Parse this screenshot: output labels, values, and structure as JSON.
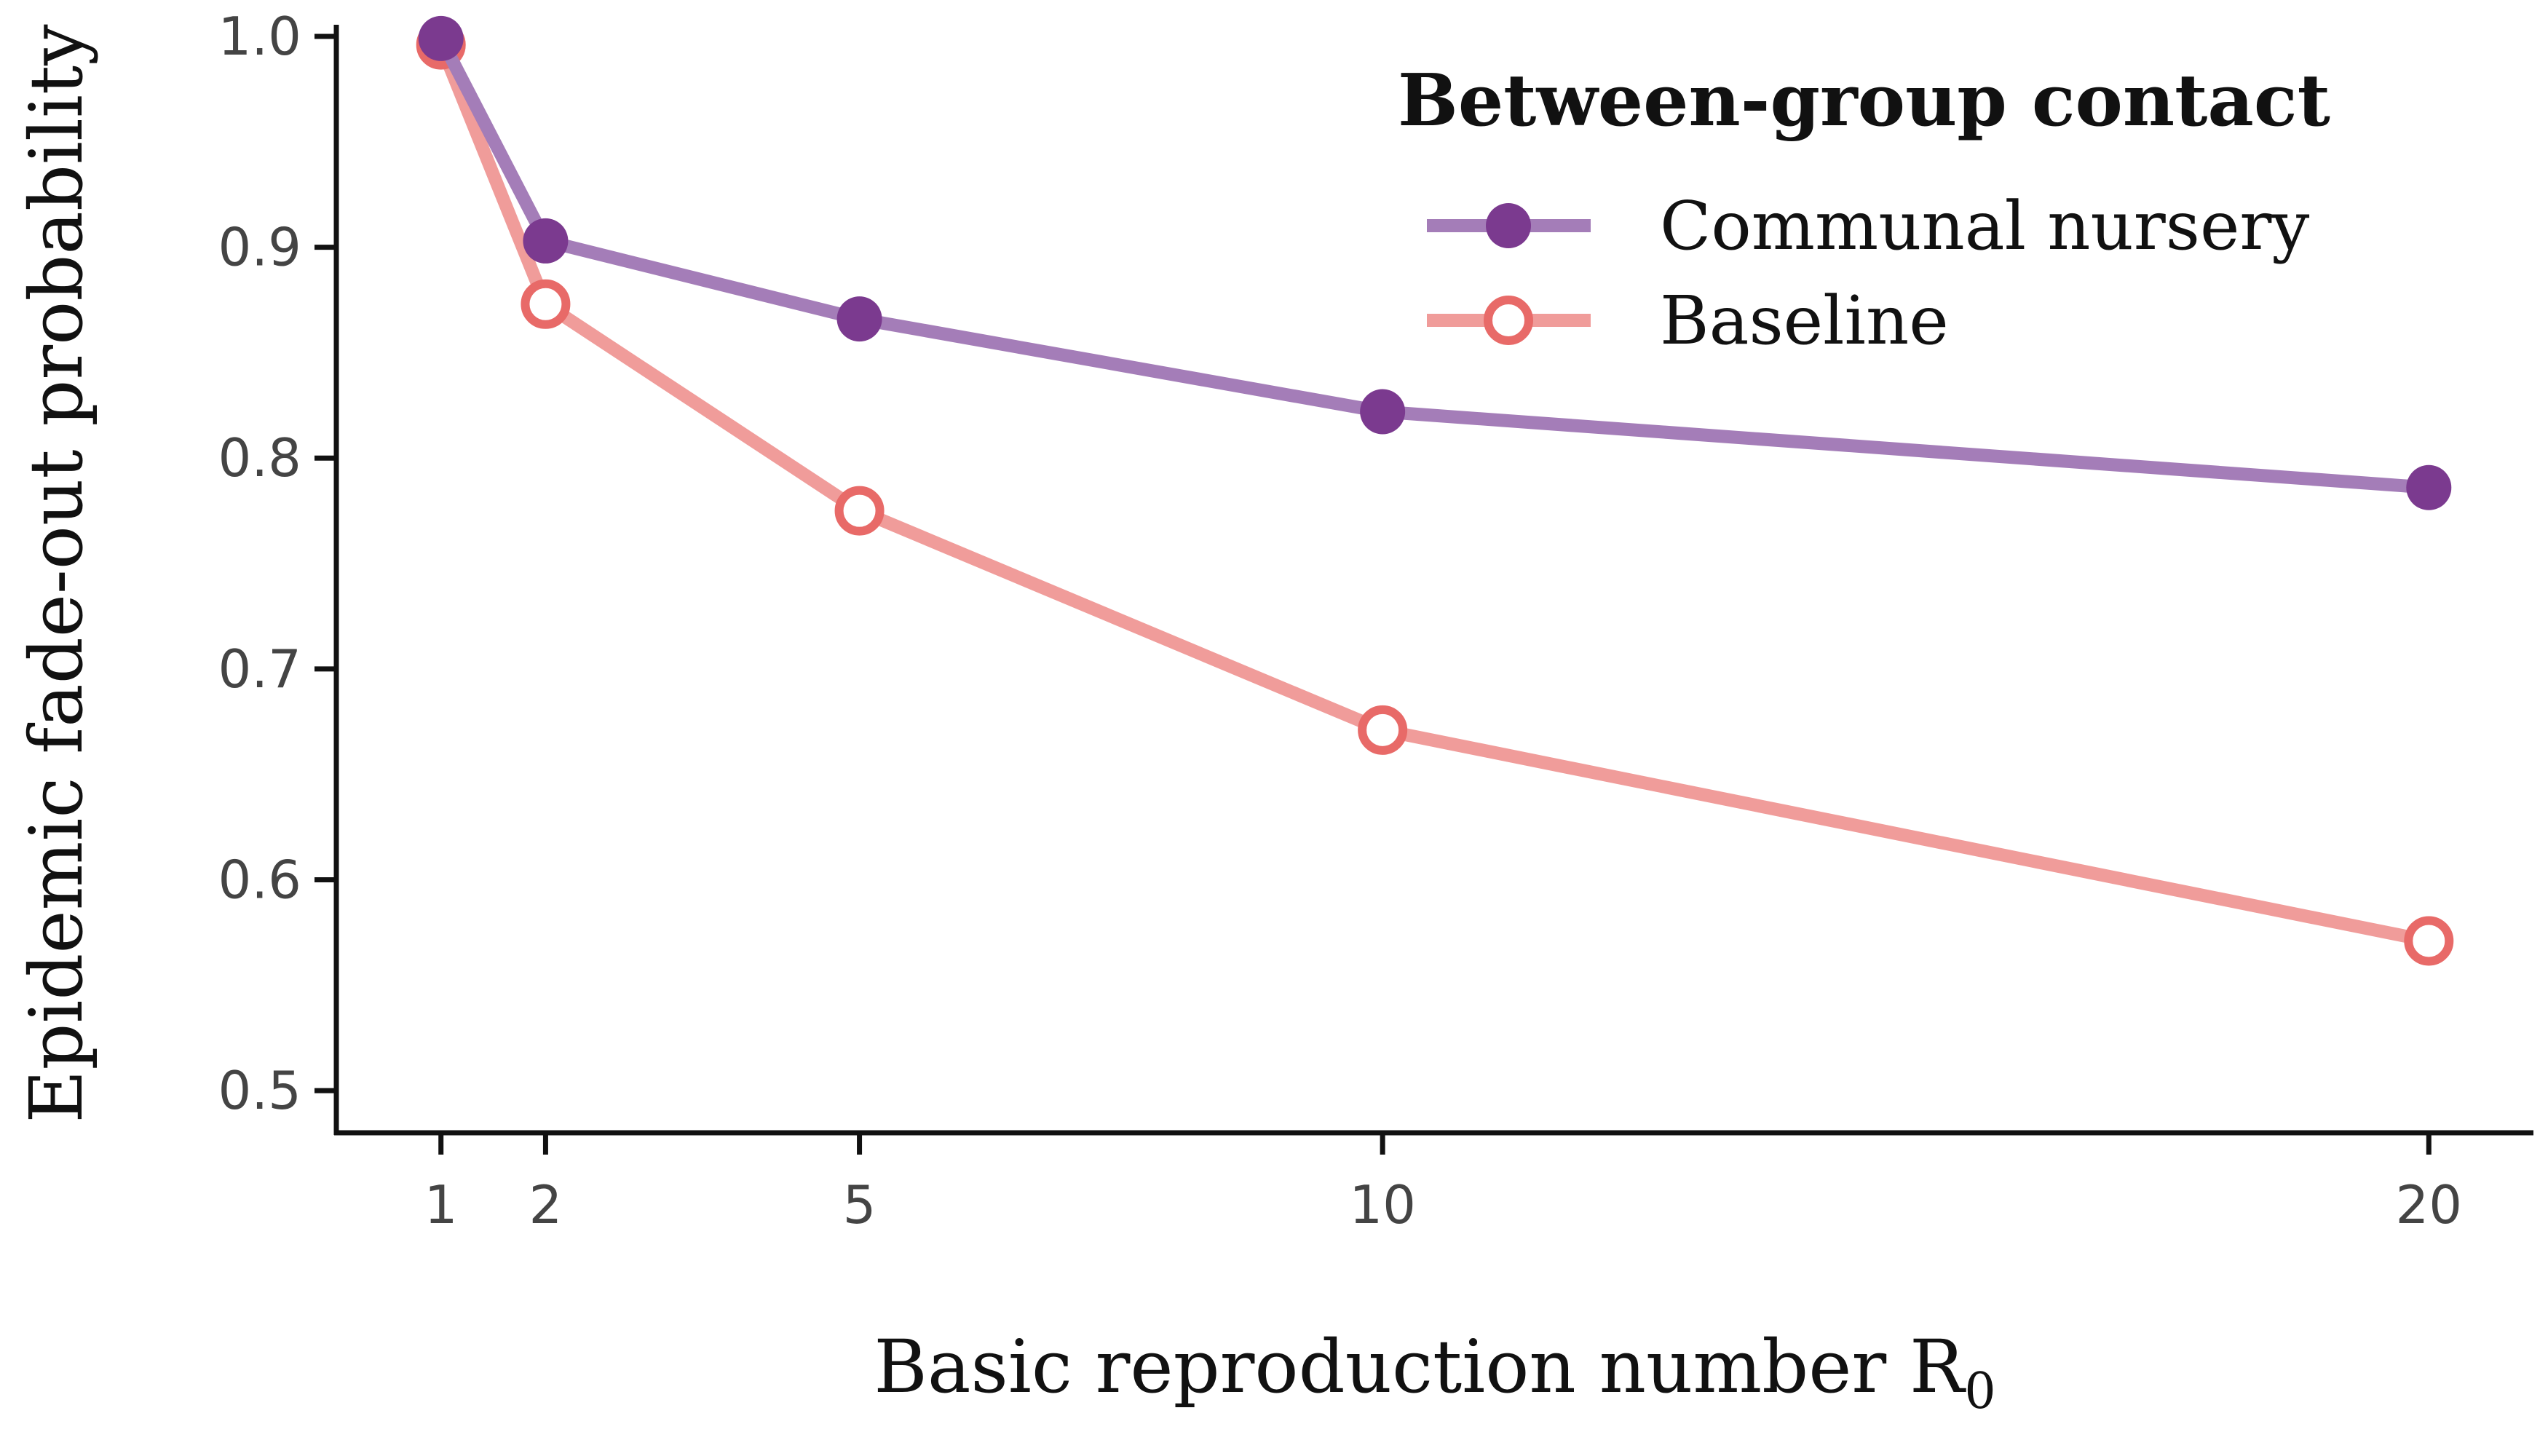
{
  "chart_data": {
    "type": "line",
    "title": "",
    "xlabel": "Basic reproduction number R",
    "xlabel_subscript": "0",
    "ylabel": "Epidemic fade-out probability",
    "x": [
      1,
      2,
      5,
      10,
      20
    ],
    "x_tick_labels": [
      "1",
      "2",
      "5",
      "10",
      "20"
    ],
    "xlim": [
      0,
      21
    ],
    "y_ticks": [
      0.5,
      0.6,
      0.7,
      0.8,
      0.9,
      1.0
    ],
    "y_tick_labels": [
      "0.5",
      "0.6",
      "0.7",
      "0.8",
      "0.9",
      "1.0"
    ],
    "ylim": [
      0.48,
      1.0
    ],
    "grid": false,
    "legend": {
      "title": "Between-group contact",
      "placement": "top-right"
    },
    "series": [
      {
        "name": "Communal nursery",
        "values": [
          0.999,
          0.903,
          0.866,
          0.822,
          0.786
        ],
        "line_color": "#a47db8",
        "marker_color": "#7b3a8f",
        "marker": "filled"
      },
      {
        "name": "Baseline",
        "values": [
          0.996,
          0.873,
          0.775,
          0.671,
          0.571
        ],
        "line_color": "#f09c9a",
        "marker_color": "#e86a68",
        "marker": "hollow"
      }
    ]
  }
}
